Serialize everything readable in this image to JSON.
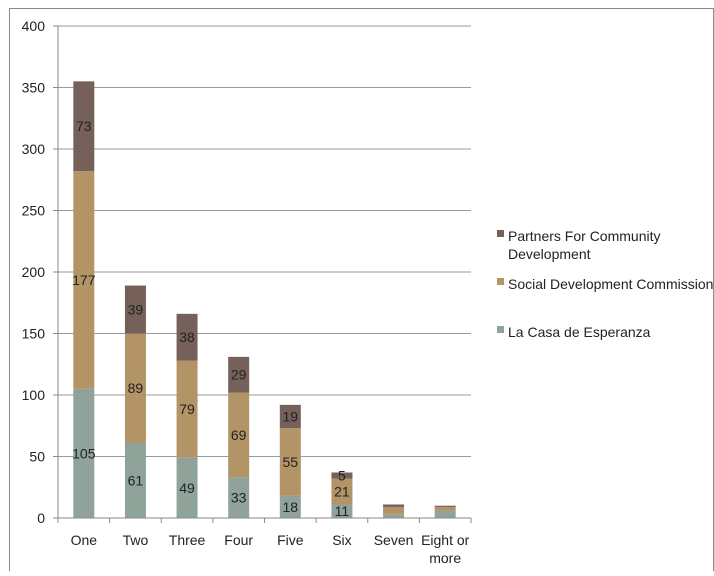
{
  "chart_data": {
    "type": "bar",
    "stacked": true,
    "categories": [
      "One",
      "Two",
      "Three",
      "Four",
      "Five",
      "Six",
      "Seven",
      "Eight or more"
    ],
    "ylim": [
      0,
      400
    ],
    "yticks": [
      0,
      50,
      100,
      150,
      200,
      250,
      300,
      350,
      400
    ],
    "grid": true,
    "legend_position": "right",
    "title": "",
    "xlabel": "",
    "ylabel": "",
    "series": [
      {
        "name": "La Casa de Esperanza",
        "color": "#8fa39a",
        "values": [
          105,
          61,
          49,
          33,
          18,
          11,
          3,
          6
        ],
        "labels": [
          "105",
          "61",
          "49",
          "33",
          "18",
          "11",
          "",
          ""
        ]
      },
      {
        "name": "Social Development Commission",
        "color": "#b39466",
        "values": [
          177,
          89,
          79,
          69,
          55,
          21,
          6,
          3
        ],
        "labels": [
          "177",
          "89",
          "79",
          "69",
          "55",
          "21",
          "",
          ""
        ]
      },
      {
        "name": "Partners For Community Development",
        "color": "#75615a",
        "values": [
          73,
          39,
          38,
          29,
          19,
          5,
          2,
          1
        ],
        "labels": [
          "73",
          "39",
          "38",
          "29",
          "19",
          "5",
          "",
          ""
        ]
      }
    ],
    "legend_lines": [
      [
        "Partners For Community",
        "Development"
      ],
      [
        "Social Development Commission"
      ],
      [
        "La Casa de Esperanza"
      ]
    ],
    "category_lines": [
      [
        "One"
      ],
      [
        "Two"
      ],
      [
        "Three"
      ],
      [
        "Four"
      ],
      [
        "Five"
      ],
      [
        "Six"
      ],
      [
        "Seven"
      ],
      [
        "Eight or",
        "more"
      ]
    ]
  }
}
